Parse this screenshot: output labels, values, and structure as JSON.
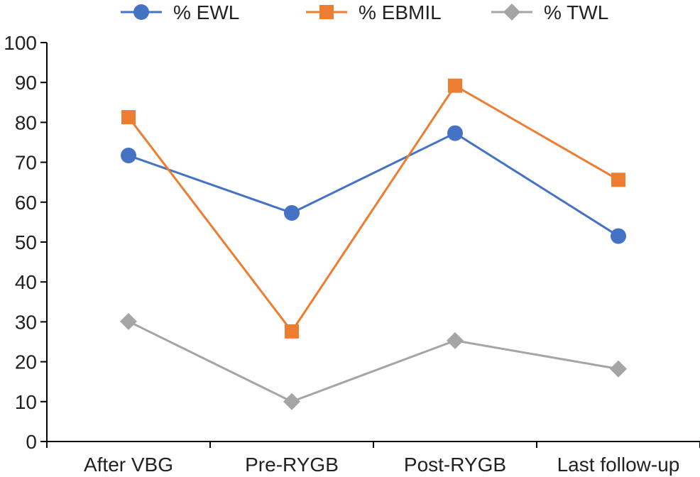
{
  "chart_data": {
    "type": "line",
    "title": "",
    "xlabel": "",
    "ylabel": "",
    "categories": [
      "After VBG",
      "Pre-RYGB",
      "Post-RYGB",
      "Last follow-up"
    ],
    "ylim": [
      0,
      100
    ],
    "yticks": [
      0,
      10,
      20,
      30,
      40,
      50,
      60,
      70,
      80,
      90,
      100
    ],
    "grid": false,
    "legend_position": "top",
    "series": [
      {
        "name": "% EWL",
        "values": [
          71.7,
          57.3,
          77.3,
          51.5
        ],
        "color": "#4472C4",
        "marker": "circle"
      },
      {
        "name": "% EBMIL",
        "values": [
          81.3,
          27.6,
          89.2,
          65.6
        ],
        "color": "#ED7D31",
        "marker": "square"
      },
      {
        "name": "% TWL",
        "values": [
          30.1,
          10.0,
          25.3,
          18.2
        ],
        "color": "#A5A5A5",
        "marker": "diamond"
      }
    ]
  }
}
